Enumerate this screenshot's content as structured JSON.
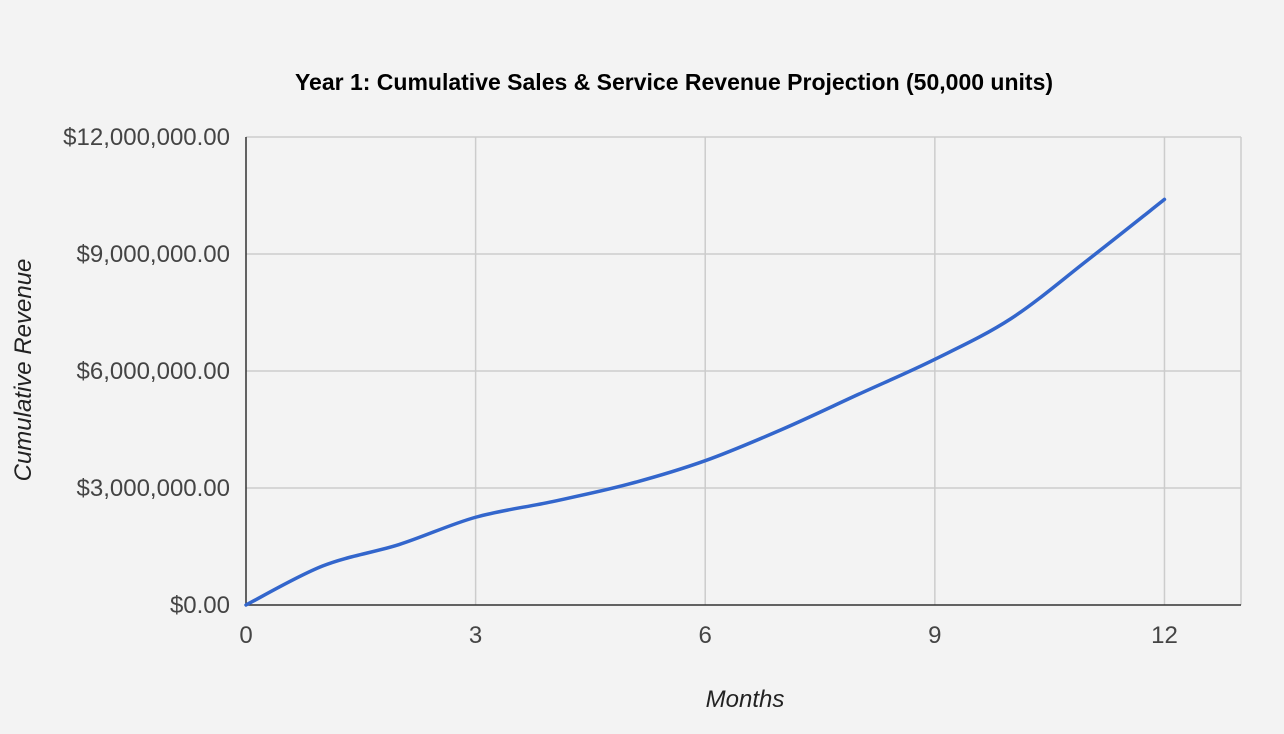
{
  "chart_data": {
    "type": "line",
    "title": "Year 1: Cumulative Sales & Service Revenue Projection (50,000 units)",
    "xlabel": "Months",
    "ylabel": "Cumulative Revenue",
    "xlim": [
      0,
      13
    ],
    "ylim": [
      0,
      12000000
    ],
    "x_ticks": [
      0,
      3,
      6,
      9,
      12
    ],
    "x_tick_labels": [
      "0",
      "3",
      "6",
      "9",
      "12"
    ],
    "y_ticks": [
      0,
      3000000,
      6000000,
      9000000,
      12000000
    ],
    "y_tick_labels": [
      "$0.00",
      "$3,000,000.00",
      "$6,000,000.00",
      "$9,000,000.00",
      "$12,000,000.00"
    ],
    "grid": true,
    "legend": "none",
    "series": [
      {
        "color": "#3366cc",
        "x": [
          0,
          1,
          2,
          3,
          4,
          5,
          6,
          7,
          8,
          9,
          10,
          11,
          12
        ],
        "y": [
          0,
          1000000,
          1550000,
          2250000,
          2650000,
          3100000,
          3700000,
          4500000,
          5400000,
          6300000,
          7350000,
          8850000,
          10400000
        ]
      }
    ]
  }
}
